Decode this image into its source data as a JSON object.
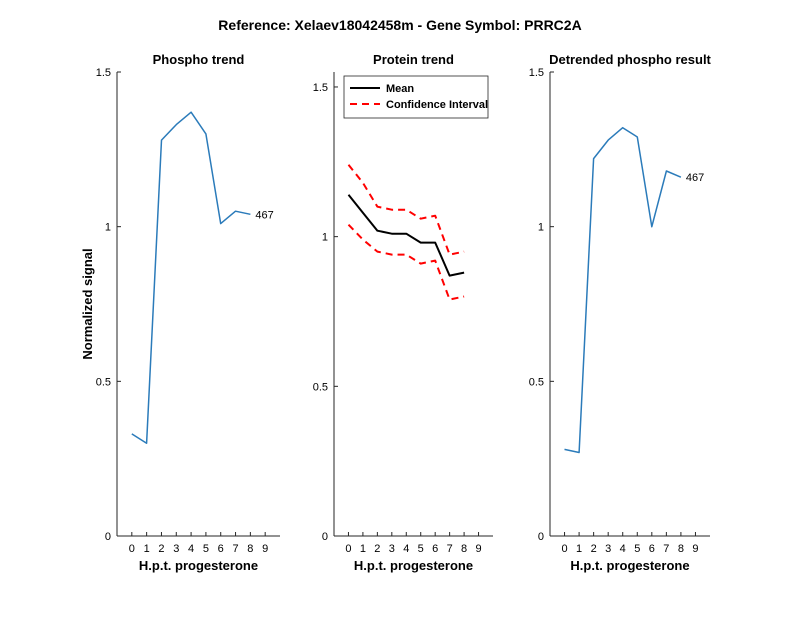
{
  "figure": {
    "title": "Reference:  Xelaev18042458m - Gene Symbol:  PRRC2A"
  },
  "chart_data": [
    {
      "type": "line",
      "title": "Phospho trend",
      "xlabel": "H.p.t. progesterone",
      "ylabel": "Normalized signal",
      "xlim": [
        -1,
        10
      ],
      "ylim": [
        0,
        1.5
      ],
      "xticks": [
        0,
        1,
        2,
        3,
        4,
        5,
        6,
        7,
        8,
        9
      ],
      "yticks": [
        0,
        0.5,
        1,
        1.5
      ],
      "ytick_labels": [
        "0",
        "0.5",
        "1",
        "1.5"
      ],
      "series": [
        {
          "color": "#2b7bba",
          "style": "solid",
          "x": [
            0,
            1,
            2,
            3,
            4,
            5,
            6,
            7,
            8,
            9
          ],
          "y": [
            0.33,
            0.3,
            1.28,
            1.33,
            1.37,
            1.3,
            1.01,
            1.05,
            1.04,
            null
          ],
          "end_label": "467"
        }
      ]
    },
    {
      "type": "line",
      "title": "Protein trend",
      "xlabel": "H.p.t. progesterone",
      "ylabel": "",
      "xlim": [
        -1,
        10
      ],
      "ylim": [
        0,
        1.55
      ],
      "xticks": [
        0,
        1,
        2,
        3,
        4,
        5,
        6,
        7,
        8,
        9
      ],
      "yticks": [
        0,
        0.5,
        1,
        1.5
      ],
      "ytick_labels": [
        "0",
        "0.5",
        "1",
        "1.5"
      ],
      "legend_position": "top-left",
      "series": [
        {
          "name": "Mean",
          "color": "#000000",
          "style": "solid",
          "x": [
            0,
            1,
            2,
            3,
            4,
            5,
            6,
            7,
            8,
            9
          ],
          "y": [
            1.14,
            1.08,
            1.02,
            1.01,
            1.01,
            0.98,
            0.98,
            0.87,
            0.88,
            null
          ]
        },
        {
          "name": "Confidence Interval",
          "color": "#ff0000",
          "style": "dashed",
          "x": [
            0,
            1,
            2,
            3,
            4,
            5,
            6,
            7,
            8,
            9
          ],
          "y": [
            1.24,
            1.18,
            1.1,
            1.09,
            1.09,
            1.06,
            1.07,
            0.94,
            0.95,
            null
          ]
        },
        {
          "name": "",
          "color": "#ff0000",
          "style": "dashed",
          "x": [
            0,
            1,
            2,
            3,
            4,
            5,
            6,
            7,
            8,
            9
          ],
          "y": [
            1.04,
            0.99,
            0.95,
            0.94,
            0.94,
            0.91,
            0.92,
            0.79,
            0.8,
            null
          ]
        }
      ]
    },
    {
      "type": "line",
      "title": "Detrended phospho result",
      "xlabel": "H.p.t. progesterone",
      "ylabel": "",
      "xlim": [
        -1,
        10
      ],
      "ylim": [
        0,
        1.5
      ],
      "xticks": [
        0,
        1,
        2,
        3,
        4,
        5,
        6,
        7,
        8,
        9
      ],
      "yticks": [
        0,
        0.5,
        1,
        1.5
      ],
      "ytick_labels": [
        "0",
        "0.5",
        "1",
        "1.5"
      ],
      "series": [
        {
          "color": "#2b7bba",
          "style": "solid",
          "x": [
            0,
            1,
            2,
            3,
            4,
            5,
            6,
            7,
            8,
            9
          ],
          "y": [
            0.28,
            0.27,
            1.22,
            1.28,
            1.32,
            1.29,
            1.0,
            1.18,
            1.16,
            null
          ],
          "end_label": "467"
        }
      ]
    }
  ]
}
